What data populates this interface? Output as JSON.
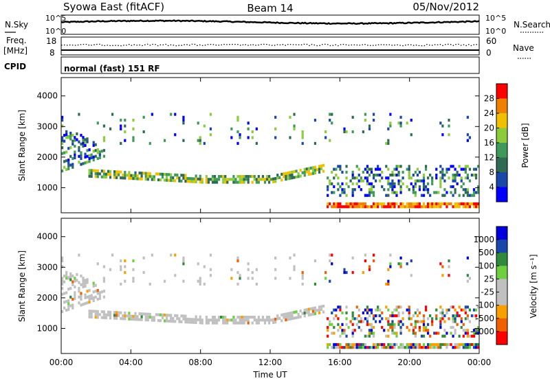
{
  "header": {
    "station": "Syowa East (fitACF)",
    "beam": "Beam 14",
    "date": "05/Nov/2012"
  },
  "noise_panel": {
    "left_label": "N.Sky",
    "right_label": "N.Search",
    "left_ticks": [
      "10^5",
      "10^0"
    ],
    "right_ticks": [
      "10^5",
      "10^0"
    ]
  },
  "freq_panel": {
    "left_label_1": "Freq.",
    "left_label_2": "[MHz]",
    "left_ticks": [
      "18",
      "8"
    ],
    "right_label": "Nave",
    "right_ticks": [
      "60",
      "0"
    ]
  },
  "cpid": {
    "label": "CPID",
    "value": "normal (fast) 151 RF"
  },
  "colors": {
    "power": [
      "#0000ff",
      "#1a48a8",
      "#2f6a55",
      "#3f9a5a",
      "#8ccc3c",
      "#f0c000",
      "#f08000",
      "#ff0000"
    ],
    "velocity": [
      "#ff0000",
      "#f06000",
      "#f8a000",
      "#c0c0c0",
      "#c0c0c0",
      "#6ed040",
      "#2f8a3c",
      "#1a48a8",
      "#0000dd"
    ]
  },
  "chart_data": [
    {
      "type": "heatmap",
      "title": "",
      "ylabel": "Slant Range [km]",
      "xlabel": "",
      "ylim": [
        180,
        4600
      ],
      "yticks": [
        1000,
        2000,
        3000,
        4000
      ],
      "xticks": [
        "00:00",
        "04:00",
        "08:00",
        "12:00",
        "16:00",
        "20:00",
        "00:00"
      ],
      "colorbar": {
        "label": "Power [dB]",
        "ticks": [
          "28",
          "24",
          "20",
          "16",
          "12",
          "8",
          "4"
        ],
        "range": [
          0,
          30
        ]
      },
      "features": [
        {
          "start_hour": 0.0,
          "end_hour": 2.5,
          "range_km": [
            1500,
            3000
          ],
          "value": "mixed"
        },
        {
          "start_hour": 2.0,
          "end_hour": 15.0,
          "range_km": [
            1200,
            1700
          ],
          "value": "8-16"
        },
        {
          "start_hour": 16.0,
          "end_hour": 24.0,
          "range_km": [
            300,
            500
          ],
          "value": "20-30"
        }
      ]
    },
    {
      "type": "heatmap",
      "title": "",
      "ylabel": "Slant Range [km]",
      "xlabel": "Time UT",
      "ylim": [
        180,
        4600
      ],
      "yticks": [
        1000,
        2000,
        3000,
        4000
      ],
      "xticks": [
        "00:00",
        "04:00",
        "08:00",
        "12:00",
        "16:00",
        "20:00",
        "00:00"
      ],
      "colorbar": {
        "label": "Velocity [m s⁻¹]",
        "ticks": [
          "1000",
          "500",
          "100",
          "25",
          "-25",
          "-100",
          "-500",
          "-1000"
        ],
        "range": [
          -1000,
          1000
        ]
      },
      "features": [
        {
          "start_hour": 3.0,
          "end_hour": 14.5,
          "range_km": [
            1200,
            1600
          ],
          "value": "ground scatter (gray)"
        },
        {
          "start_hour": 15.0,
          "end_hour": 24.0,
          "range_km": [
            400,
            1800
          ],
          "value": "mixed high velocity"
        }
      ]
    }
  ]
}
